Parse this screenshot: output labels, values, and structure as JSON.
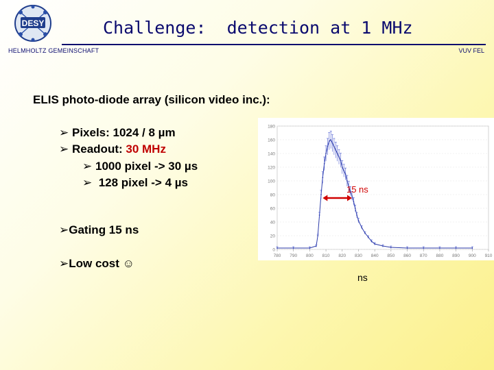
{
  "header": {
    "logo_text": "DESY",
    "title_part1": "Challenge:",
    "title_part2": "detection at 1 MHz",
    "org_left": "HELMHOLTZ GEMEINSCHAFT",
    "org_right": "VUV FEL"
  },
  "content": {
    "heading": "ELIS photo-diode array (silicon video inc.):",
    "pixels": "Pixels: 1024 / 8 µm",
    "readout_label": "Readout: ",
    "readout_value": "30 MHz",
    "sub1": "1000 pixel -> 30 µs",
    "sub2": " 128 pixel -> 4 µs",
    "gating": "Gating 15 ns",
    "lowcost": "Low cost ☺",
    "bullet_glyph": "➢"
  },
  "chart_data": {
    "type": "line",
    "x_axis_unit_label": "ns",
    "xlim": [
      780,
      910
    ],
    "ylim": [
      0,
      180
    ],
    "xticks": [
      "780",
      "790",
      "800",
      "810",
      "820",
      "830",
      "840",
      "850",
      "860",
      "870",
      "880",
      "890",
      "900",
      "910"
    ],
    "yticks": [
      "0",
      "20",
      "40",
      "60",
      "80",
      "100",
      "120",
      "140",
      "160",
      "180"
    ],
    "annotation": "15 ns",
    "annotation_x_range": [
      808,
      826
    ],
    "annotation_y": 75,
    "x": [
      780,
      790,
      800,
      804,
      805,
      806,
      807,
      808,
      809,
      810,
      811,
      812,
      813,
      814,
      815,
      816,
      817,
      818,
      819,
      820,
      821,
      822,
      823,
      824,
      825,
      826,
      827,
      828,
      829,
      830,
      832,
      834,
      836,
      838,
      840,
      845,
      850,
      860,
      870,
      880,
      890,
      900
    ],
    "y": [
      2,
      2,
      2,
      5,
      20,
      50,
      80,
      105,
      125,
      140,
      150,
      158,
      160,
      155,
      150,
      145,
      140,
      135,
      130,
      120,
      115,
      110,
      100,
      92,
      85,
      78,
      70,
      60,
      50,
      42,
      32,
      24,
      18,
      12,
      8,
      5,
      3,
      2,
      2,
      2,
      2,
      2
    ]
  }
}
